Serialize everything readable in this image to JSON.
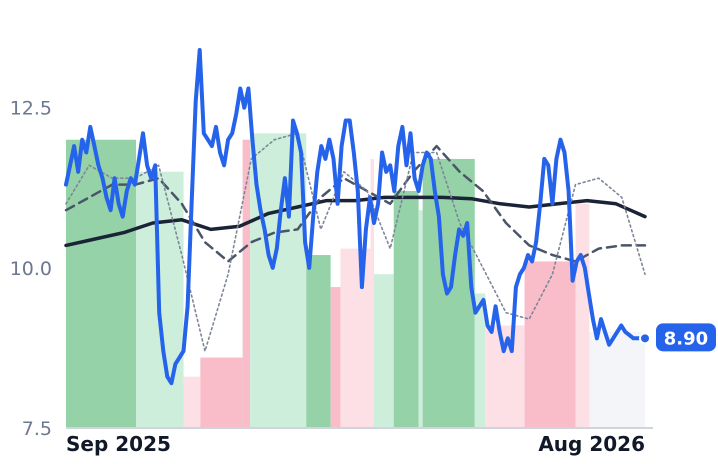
{
  "chart_data": {
    "type": "line",
    "title": "",
    "xlabel": "",
    "ylabel": "",
    "ylim": [
      7.5,
      13.9
    ],
    "y_ticks": [
      {
        "label": "7.5",
        "value": 7.5
      },
      {
        "label": "10.0",
        "value": 10.0
      },
      {
        "label": "12.5",
        "value": 12.5
      }
    ],
    "x_range": [
      0,
      100
    ],
    "x_ticks": [
      {
        "label": "Sep 2025",
        "x": 0,
        "anchor": "start"
      },
      {
        "label": "Aug 2026",
        "x": 100,
        "anchor": "end"
      }
    ],
    "grid": false,
    "legend": "none",
    "last_value_label": "8.90",
    "colors": {
      "price": "#2563eb",
      "long_ma": "#1b2336",
      "mid_ma": "#4b5568",
      "short_ma": "#7d8699",
      "band_strong_up": "#8fd0a3",
      "band_up": "#cdeeda",
      "band_strong_down": "#f8b9c6",
      "band_down": "#fde0e6",
      "band_neutral": "#f3f5f9",
      "axis": "#d1d5db",
      "label_bg": "#2563eb"
    },
    "regime_bands": [
      {
        "x0": 0.0,
        "x1": 12.1,
        "top": 12.0,
        "kind": "strong_up"
      },
      {
        "x0": 12.1,
        "x1": 20.3,
        "top": 11.5,
        "kind": "up"
      },
      {
        "x0": 20.3,
        "x1": 23.2,
        "top": 8.3,
        "kind": "down"
      },
      {
        "x0": 23.2,
        "x1": 30.5,
        "top": 8.6,
        "kind": "strong_down"
      },
      {
        "x0": 30.5,
        "x1": 31.8,
        "top": 12.0,
        "kind": "strong_down"
      },
      {
        "x0": 31.8,
        "x1": 41.5,
        "top": 12.1,
        "kind": "up"
      },
      {
        "x0": 41.5,
        "x1": 45.7,
        "top": 10.2,
        "kind": "strong_up"
      },
      {
        "x0": 45.7,
        "x1": 47.4,
        "top": 9.7,
        "kind": "strong_down"
      },
      {
        "x0": 47.4,
        "x1": 52.6,
        "top": 10.3,
        "kind": "down"
      },
      {
        "x0": 52.6,
        "x1": 53.2,
        "top": 11.7,
        "kind": "down"
      },
      {
        "x0": 53.2,
        "x1": 56.6,
        "top": 9.9,
        "kind": "up"
      },
      {
        "x0": 56.6,
        "x1": 60.9,
        "top": 11.2,
        "kind": "strong_up"
      },
      {
        "x0": 60.9,
        "x1": 61.6,
        "top": 10.9,
        "kind": "up"
      },
      {
        "x0": 61.6,
        "x1": 70.6,
        "top": 11.7,
        "kind": "strong_up"
      },
      {
        "x0": 70.6,
        "x1": 72.4,
        "top": 9.6,
        "kind": "up"
      },
      {
        "x0": 72.4,
        "x1": 79.2,
        "top": 9.1,
        "kind": "down"
      },
      {
        "x0": 79.2,
        "x1": 88.0,
        "top": 10.1,
        "kind": "strong_down"
      },
      {
        "x0": 88.0,
        "x1": 90.4,
        "top": 11.0,
        "kind": "down"
      },
      {
        "x0": 90.4,
        "x1": 100.0,
        "top": 9.0,
        "kind": "neutral"
      }
    ],
    "series": [
      {
        "key": "price",
        "x": [
          0,
          0.7,
          1.4,
          2.1,
          2.8,
          3.5,
          4.2,
          4.9,
          5.6,
          6.3,
          7.0,
          7.7,
          8.4,
          9.1,
          9.8,
          10.5,
          11.2,
          11.9,
          12.6,
          13.3,
          14.0,
          14.7,
          15.4,
          16.1,
          16.8,
          17.5,
          18.2,
          18.9,
          19.6,
          20.3,
          21.0,
          21.7,
          22.4,
          23.1,
          23.8,
          24.5,
          25.2,
          25.9,
          26.6,
          27.3,
          28.0,
          28.7,
          29.4,
          30.1,
          30.8,
          31.5,
          32.2,
          32.9,
          33.6,
          34.3,
          35.0,
          35.7,
          36.4,
          37.1,
          37.8,
          38.5,
          39.2,
          39.9,
          40.6,
          41.3,
          42.0,
          42.7,
          43.4,
          44.1,
          44.8,
          45.5,
          46.2,
          46.9,
          47.6,
          48.3,
          49.0,
          49.7,
          50.4,
          51.1,
          51.8,
          52.5,
          53.2,
          53.9,
          54.6,
          55.3,
          56.0,
          56.7,
          57.4,
          58.1,
          58.8,
          59.5,
          60.2,
          60.9,
          61.6,
          62.3,
          63.0,
          63.7,
          64.4,
          65.1,
          65.8,
          66.5,
          67.2,
          67.9,
          68.6,
          69.3,
          70.0,
          70.7,
          71.4,
          72.1,
          72.8,
          73.5,
          74.2,
          74.9,
          75.6,
          76.3,
          77.0,
          77.7,
          78.4,
          79.1,
          79.8,
          80.5,
          81.2,
          81.9,
          82.6,
          83.3,
          84.0,
          84.7,
          85.4,
          86.1,
          86.8,
          87.5,
          88.2,
          88.9,
          89.6,
          90.3,
          91.0,
          91.7,
          92.4,
          93.1,
          93.8,
          94.5,
          95.2,
          95.9,
          96.6,
          97.3,
          98.0,
          98.7,
          99.4,
          100.0
        ],
        "y": [
          11.3,
          11.6,
          11.9,
          11.5,
          12.0,
          11.8,
          12.2,
          11.9,
          11.6,
          11.4,
          11.1,
          10.9,
          11.4,
          11.0,
          10.8,
          11.2,
          11.4,
          11.3,
          11.7,
          12.1,
          11.6,
          11.4,
          11.6,
          9.3,
          8.7,
          8.3,
          8.2,
          8.5,
          8.6,
          8.7,
          9.4,
          11.0,
          12.6,
          13.4,
          12.1,
          12.0,
          11.9,
          12.2,
          11.8,
          11.6,
          12.0,
          12.1,
          12.4,
          12.8,
          12.5,
          12.8,
          12.0,
          11.3,
          10.9,
          10.6,
          10.2,
          10.0,
          10.3,
          10.9,
          11.4,
          10.8,
          12.3,
          12.1,
          11.8,
          10.4,
          10.0,
          10.8,
          11.5,
          11.9,
          11.7,
          12.0,
          11.7,
          11.0,
          11.9,
          12.3,
          12.3,
          11.8,
          11.2,
          9.7,
          10.6,
          11.1,
          10.7,
          11.0,
          11.8,
          11.5,
          11.6,
          11.2,
          11.9,
          12.2,
          11.6,
          12.1,
          11.4,
          11.2,
          11.6,
          11.8,
          11.7,
          11.2,
          10.8,
          9.9,
          9.6,
          9.7,
          10.2,
          10.6,
          10.5,
          10.7,
          9.7,
          9.3,
          9.4,
          9.5,
          9.1,
          9.0,
          9.4,
          9.0,
          8.7,
          8.9,
          8.7,
          9.7,
          9.9,
          10.0,
          10.2,
          10.1,
          10.4,
          11.0,
          11.7,
          11.6,
          11.0,
          11.7,
          12.0,
          11.8,
          11.2,
          9.8,
          10.1,
          10.2,
          10.0,
          9.6,
          9.2,
          8.9,
          9.2,
          9.0,
          8.8,
          8.9,
          9.0,
          9.1,
          9.0,
          8.95,
          8.9,
          8.9,
          8.9,
          8.9
        ]
      },
      {
        "key": "long_ma",
        "x": [
          0,
          5,
          10,
          15,
          20,
          25,
          30,
          35,
          40,
          45,
          50,
          55,
          60,
          65,
          70,
          75,
          80,
          85,
          90,
          95,
          100
        ],
        "y": [
          10.35,
          10.45,
          10.55,
          10.7,
          10.75,
          10.6,
          10.65,
          10.85,
          10.95,
          11.05,
          11.05,
          11.1,
          11.1,
          11.1,
          11.08,
          11.0,
          10.95,
          11.0,
          11.05,
          11.0,
          10.8
        ]
      },
      {
        "key": "mid_ma",
        "x": [
          0,
          4,
          8,
          12,
          16,
          20,
          24,
          28,
          32,
          36,
          40,
          44,
          48,
          52,
          56,
          60,
          64,
          68,
          72,
          76,
          80,
          84,
          88,
          92,
          96,
          100
        ],
        "y": [
          10.9,
          11.1,
          11.3,
          11.3,
          11.4,
          11.0,
          10.4,
          10.1,
          10.4,
          10.55,
          10.6,
          11.1,
          11.4,
          11.2,
          11.0,
          11.5,
          11.9,
          11.5,
          11.2,
          10.7,
          10.35,
          10.2,
          10.1,
          10.3,
          10.35,
          10.35
        ]
      },
      {
        "key": "short_ma",
        "x": [
          0,
          4,
          8,
          12,
          16,
          20,
          24,
          28,
          32,
          36,
          40,
          44,
          48,
          52,
          56,
          60,
          64,
          68,
          72,
          76,
          80,
          84,
          88,
          92,
          96,
          100
        ],
        "y": [
          11.0,
          11.6,
          11.4,
          11.4,
          11.6,
          10.2,
          8.7,
          9.9,
          11.7,
          12.0,
          12.1,
          10.6,
          11.5,
          11.2,
          10.3,
          11.8,
          11.8,
          10.7,
          10.0,
          9.3,
          9.2,
          9.9,
          11.3,
          11.4,
          11.1,
          9.9
        ]
      }
    ]
  }
}
